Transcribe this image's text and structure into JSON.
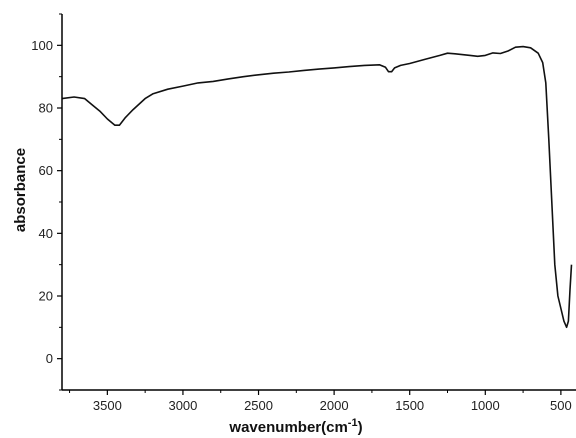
{
  "chart_data": {
    "type": "line",
    "xlabel": "wavenumber(cm",
    "xlabel_sup": "-1",
    "xlabel_close": ")",
    "ylabel": "absorbance",
    "xlim": [
      3800,
      400
    ],
    "ylim": [
      -10,
      110
    ],
    "x_reversed": true,
    "grid": false,
    "x_ticks": [
      3500,
      3000,
      2500,
      2000,
      1500,
      1000,
      500
    ],
    "x_tick_labels": [
      "3500",
      "3000",
      "2500",
      "2000",
      "1500",
      "1000",
      "500"
    ],
    "y_ticks": [
      0,
      20,
      40,
      60,
      80,
      100
    ],
    "y_tick_labels": [
      "0",
      "20",
      "40",
      "60",
      "80",
      "100"
    ],
    "series": [
      {
        "color": "#111111",
        "points": [
          [
            3800,
            83
          ],
          [
            3720,
            83.5
          ],
          [
            3650,
            83
          ],
          [
            3600,
            81
          ],
          [
            3550,
            79
          ],
          [
            3500,
            76.5
          ],
          [
            3450,
            74.5
          ],
          [
            3420,
            74.5
          ],
          [
            3380,
            77
          ],
          [
            3330,
            79.5
          ],
          [
            3250,
            83
          ],
          [
            3200,
            84.5
          ],
          [
            3100,
            86
          ],
          [
            3000,
            87
          ],
          [
            2900,
            88
          ],
          [
            2800,
            88.5
          ],
          [
            2700,
            89.3
          ],
          [
            2600,
            90
          ],
          [
            2500,
            90.6
          ],
          [
            2400,
            91.1
          ],
          [
            2300,
            91.5
          ],
          [
            2200,
            92
          ],
          [
            2100,
            92.4
          ],
          [
            2000,
            92.8
          ],
          [
            1900,
            93.2
          ],
          [
            1800,
            93.6
          ],
          [
            1700,
            93.8
          ],
          [
            1660,
            93
          ],
          [
            1640,
            91.6
          ],
          [
            1620,
            91.6
          ],
          [
            1600,
            92.8
          ],
          [
            1560,
            93.6
          ],
          [
            1500,
            94.2
          ],
          [
            1400,
            95.5
          ],
          [
            1300,
            96.8
          ],
          [
            1250,
            97.5
          ],
          [
            1200,
            97.3
          ],
          [
            1100,
            96.8
          ],
          [
            1050,
            96.5
          ],
          [
            1000,
            96.8
          ],
          [
            950,
            97.6
          ],
          [
            900,
            97.4
          ],
          [
            850,
            98.2
          ],
          [
            800,
            99.4
          ],
          [
            750,
            99.6
          ],
          [
            700,
            99.2
          ],
          [
            650,
            97.5
          ],
          [
            620,
            94.5
          ],
          [
            600,
            88
          ],
          [
            580,
            70
          ],
          [
            560,
            50
          ],
          [
            540,
            30
          ],
          [
            520,
            20
          ],
          [
            500,
            16
          ],
          [
            480,
            12
          ],
          [
            462,
            10
          ],
          [
            450,
            12
          ],
          [
            440,
            22
          ],
          [
            430,
            30
          ]
        ]
      }
    ]
  }
}
